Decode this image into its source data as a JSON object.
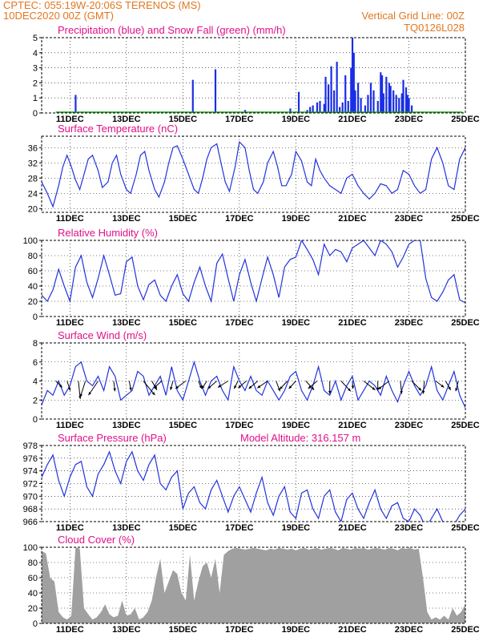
{
  "header": {
    "source_line": "CPTEC:  055:19W-20:06S  TERENOS (MS)",
    "init_line": "10DEC2020 00Z (GMT)",
    "grid_note": "Vertical Grid Line: 00Z",
    "code": "TQ0126L028"
  },
  "colors": {
    "precip": "#1a2ee6",
    "snow": "#10a010",
    "line": "#2233dd",
    "cloud": "#a0a0a0",
    "title": "#e0108a",
    "header": "#e07820",
    "arrow": "#000000"
  },
  "chart_data": [
    {
      "id": "precip",
      "type": "bar",
      "title": "Precipitation (blue) and Snow Fall (green) (mm/h)",
      "x_ticks": [
        "11DEC",
        "13DEC",
        "15DEC",
        "17DEC",
        "19DEC",
        "21DEC",
        "23DEC",
        "25DEC"
      ],
      "x_range_days": [
        10,
        25
      ],
      "ylim": [
        0,
        5
      ],
      "y_ticks": [
        0,
        1,
        2,
        3,
        4,
        5
      ],
      "series": [
        {
          "name": "Precipitation",
          "x": [
            11.2,
            15.35,
            16.15,
            17.2,
            18.8,
            19.1,
            19.4,
            19.5,
            19.6,
            19.75,
            19.85,
            20.0,
            20.05,
            20.15,
            20.25,
            20.35,
            20.45,
            20.55,
            20.65,
            20.75,
            20.85,
            20.95,
            21.0,
            21.05,
            21.1,
            21.2,
            21.3,
            21.45,
            21.55,
            21.65,
            21.75,
            21.9,
            22.0,
            22.05,
            22.1,
            22.2,
            22.3,
            22.35,
            22.45,
            22.55,
            22.65,
            22.75,
            22.8,
            22.9,
            22.95,
            23.0,
            23.1
          ],
          "values": [
            1.2,
            2.2,
            2.9,
            0.2,
            0.3,
            1.4,
            0.2,
            0.4,
            0.5,
            0.7,
            0.8,
            0.6,
            2.4,
            1.9,
            3.1,
            1.5,
            3.4,
            0.4,
            0.7,
            2.5,
            0.8,
            3.0,
            5.0,
            4.0,
            1.5,
            2.0,
            1.0,
            0.5,
            1.2,
            2.0,
            1.5,
            0.8,
            2.7,
            2.5,
            1.3,
            2.4,
            2.0,
            1.8,
            1.5,
            1.2,
            1.0,
            1.3,
            2.2,
            1.7,
            1.2,
            1.0,
            0.5
          ]
        },
        {
          "name": "Snow Fall",
          "x": [
            10.5,
            24.9
          ],
          "values": [
            0,
            0
          ]
        }
      ]
    },
    {
      "id": "temp",
      "type": "line",
      "title": "Surface Temperature (nC)",
      "ylim": [
        19,
        39
      ],
      "y_ticks": [
        20,
        24,
        28,
        32,
        36
      ],
      "x": [
        10,
        10.2,
        10.4,
        10.6,
        10.75,
        10.9,
        11.05,
        11.2,
        11.35,
        11.5,
        11.65,
        11.8,
        12.0,
        12.15,
        12.35,
        12.5,
        12.65,
        12.8,
        13.0,
        13.15,
        13.35,
        13.5,
        13.65,
        13.8,
        14.0,
        14.15,
        14.35,
        14.5,
        14.65,
        14.8,
        15.0,
        15.2,
        15.4,
        15.55,
        15.7,
        15.85,
        16.0,
        16.2,
        16.35,
        16.5,
        16.65,
        16.85,
        17.0,
        17.2,
        17.35,
        17.5,
        17.65,
        17.85,
        18.0,
        18.2,
        18.35,
        18.5,
        18.65,
        18.85,
        19.0,
        19.2,
        19.4,
        19.55,
        19.7,
        19.85,
        20.0,
        20.2,
        20.4,
        20.6,
        20.8,
        21.0,
        21.2,
        21.4,
        21.6,
        21.8,
        22.0,
        22.2,
        22.4,
        22.6,
        22.8,
        23.0,
        23.2,
        23.4,
        23.6,
        23.8,
        24.0,
        24.2,
        24.4,
        24.6,
        24.8,
        25.0
      ],
      "values": [
        27,
        24,
        20.5,
        26,
        31,
        34,
        31,
        27.5,
        25,
        29,
        33,
        34,
        30,
        25.5,
        27,
        32,
        34,
        29,
        25,
        24,
        29,
        34,
        35,
        30,
        25,
        23,
        27,
        32,
        36,
        36.5,
        33,
        29,
        25,
        24,
        28,
        33,
        36,
        37,
        32,
        27,
        24.5,
        31,
        37.5,
        36,
        30,
        25,
        24,
        27,
        32,
        35,
        31,
        26,
        26,
        29,
        35,
        32.5,
        27,
        26,
        33,
        30,
        28,
        26,
        25,
        24,
        28,
        29,
        26,
        24,
        22.5,
        24,
        26.5,
        26,
        24,
        25,
        30,
        29,
        26,
        24,
        25,
        33,
        36,
        32,
        26,
        25,
        33,
        36
      ]
    },
    {
      "id": "rh",
      "type": "line",
      "title": "Relative Humidity (%)",
      "ylim": [
        0,
        100
      ],
      "y_ticks": [
        0,
        20,
        40,
        60,
        80,
        100
      ],
      "x": [
        10,
        10.2,
        10.4,
        10.6,
        10.8,
        11.0,
        11.2,
        11.4,
        11.6,
        11.8,
        12.0,
        12.2,
        12.4,
        12.6,
        12.8,
        13.0,
        13.2,
        13.4,
        13.6,
        13.8,
        14.0,
        14.2,
        14.4,
        14.6,
        14.8,
        15.0,
        15.2,
        15.4,
        15.6,
        15.8,
        16.0,
        16.2,
        16.4,
        16.6,
        16.8,
        17.0,
        17.2,
        17.4,
        17.6,
        17.8,
        18.0,
        18.2,
        18.4,
        18.6,
        18.8,
        19.0,
        19.2,
        19.4,
        19.6,
        19.8,
        20.0,
        20.2,
        20.4,
        20.6,
        20.8,
        21.0,
        21.2,
        21.4,
        21.6,
        21.8,
        22.0,
        22.2,
        22.4,
        22.6,
        22.8,
        23.0,
        23.2,
        23.4,
        23.6,
        23.8,
        24.0,
        24.2,
        24.4,
        24.6,
        24.8,
        25.0
      ],
      "values": [
        28,
        20,
        35,
        62,
        40,
        20,
        65,
        80,
        45,
        25,
        50,
        80,
        55,
        28,
        30,
        72,
        78,
        40,
        22,
        42,
        48,
        28,
        20,
        40,
        55,
        30,
        20,
        45,
        65,
        40,
        20,
        70,
        82,
        50,
        20,
        55,
        75,
        45,
        20,
        50,
        78,
        55,
        25,
        65,
        75,
        78,
        100,
        88,
        75,
        55,
        95,
        80,
        88,
        85,
        72,
        90,
        95,
        100,
        90,
        80,
        100,
        95,
        85,
        65,
        78,
        95,
        100,
        100,
        50,
        25,
        20,
        32,
        48,
        55,
        22,
        18
      ]
    },
    {
      "id": "wind",
      "type": "line",
      "title": "Surface Wind (m/s)",
      "ylim": [
        0,
        8
      ],
      "y_ticks": [
        0,
        2,
        4,
        6,
        8
      ],
      "x": [
        10,
        10.2,
        10.4,
        10.6,
        10.8,
        11.0,
        11.2,
        11.4,
        11.6,
        11.8,
        12.0,
        12.2,
        12.4,
        12.6,
        12.8,
        13.0,
        13.2,
        13.4,
        13.6,
        13.8,
        14.0,
        14.2,
        14.4,
        14.6,
        14.8,
        15.0,
        15.2,
        15.4,
        15.6,
        15.8,
        16.0,
        16.2,
        16.4,
        16.6,
        16.8,
        17.0,
        17.2,
        17.4,
        17.6,
        17.8,
        18.0,
        18.2,
        18.4,
        18.6,
        18.8,
        19.0,
        19.2,
        19.4,
        19.6,
        19.8,
        20.0,
        20.2,
        20.4,
        20.6,
        20.8,
        21.0,
        21.2,
        21.4,
        21.6,
        21.8,
        22.0,
        22.2,
        22.4,
        22.6,
        22.8,
        23.0,
        23.2,
        23.4,
        23.6,
        23.8,
        24.0,
        24.2,
        24.4,
        24.6,
        24.8,
        25.0
      ],
      "values": [
        1.5,
        3,
        2.5,
        4,
        2.5,
        3.5,
        5.5,
        6,
        4,
        3.5,
        4.5,
        3,
        5.5,
        4.5,
        2,
        2.5,
        3,
        5,
        4.5,
        2.5,
        3.5,
        4.5,
        2.5,
        5.5,
        3,
        2,
        4,
        6,
        4,
        2.5,
        4,
        4.5,
        3,
        2,
        5.5,
        4,
        3,
        4.5,
        3,
        2.5,
        4,
        3,
        2,
        3,
        4.5,
        5,
        3,
        2,
        3.5,
        5.5,
        3,
        2.5,
        4,
        2,
        3.5,
        4.5,
        2,
        3,
        4,
        3.5,
        2.5,
        4.5,
        3,
        1.8,
        3.5,
        5,
        3.5,
        2.5,
        3.5,
        5.5,
        3,
        2,
        3.5,
        5,
        2.5,
        1.2
      ],
      "arrows": {
        "x": [
          10.5,
          10.9,
          11.3,
          11.55,
          12.0,
          12.55,
          13.1,
          13.6,
          13.9,
          14.25,
          14.65,
          15.1,
          15.55,
          15.85,
          16.2,
          16.6,
          16.95,
          17.25,
          17.65,
          18.0,
          18.3,
          18.7,
          19.0,
          19.35,
          19.75,
          20.2,
          20.6,
          21.0,
          21.4,
          21.9,
          22.3,
          22.7,
          23.1,
          23.55,
          23.95,
          24.3,
          24.75
        ],
        "u": [
          1,
          0.5,
          0.3,
          -0.8,
          -1.5,
          0.2,
          0.3,
          1.8,
          0.8,
          -1.2,
          -0.4,
          -1.6,
          0.5,
          -0.8,
          -1.4,
          -1.6,
          -0.6,
          -1.3,
          -1.4,
          -1.6,
          0.6,
          -1.2,
          -1.1,
          1.3,
          -1.4,
          0,
          1.5,
          0.1,
          1.8,
          0,
          -1.7,
          0.2,
          1.5,
          -0.2,
          1.3,
          0.8,
          -0.4
        ],
        "v": [
          1,
          1.5,
          2.8,
          2.5,
          2.2,
          1.6,
          1.5,
          2.2,
          1.4,
          1.1,
          1.4,
          1.2,
          1.2,
          1.2,
          1.2,
          1.0,
          1.2,
          1.1,
          1.2,
          1.1,
          1.6,
          1.3,
          1.2,
          1.4,
          1.2,
          2.0,
          1.6,
          1.2,
          1.4,
          1.5,
          1.3,
          2.0,
          1.5,
          2.0,
          1.0,
          1.4,
          1.6
        ]
      }
    },
    {
      "id": "pressure",
      "type": "line",
      "title": "Surface Pressure (hPa)",
      "note": "Model Altitude: 316.157 m",
      "ylim": [
        966,
        978
      ],
      "y_ticks": [
        966,
        968,
        970,
        972,
        974,
        976,
        978
      ],
      "x": [
        10,
        10.2,
        10.4,
        10.6,
        10.8,
        11.0,
        11.2,
        11.4,
        11.6,
        11.8,
        12.0,
        12.2,
        12.4,
        12.6,
        12.8,
        13.0,
        13.2,
        13.4,
        13.6,
        13.8,
        14.0,
        14.2,
        14.4,
        14.6,
        14.8,
        15.0,
        15.2,
        15.4,
        15.6,
        15.8,
        16.0,
        16.2,
        16.4,
        16.6,
        16.8,
        17.0,
        17.2,
        17.4,
        17.6,
        17.8,
        18.0,
        18.2,
        18.4,
        18.6,
        18.8,
        19.0,
        19.2,
        19.4,
        19.6,
        19.8,
        20.0,
        20.2,
        20.4,
        20.6,
        20.8,
        21.0,
        21.2,
        21.4,
        21.6,
        21.8,
        22.0,
        22.2,
        22.4,
        22.6,
        22.8,
        23.0,
        23.2,
        23.4,
        23.6,
        23.8,
        24.0,
        24.2,
        24.4,
        24.6,
        24.8,
        25.0
      ],
      "values": [
        973,
        975,
        976.5,
        972.5,
        970,
        973,
        975,
        975.5,
        971.5,
        970,
        973.5,
        975,
        977,
        974,
        972,
        975.5,
        977,
        974,
        972.5,
        975,
        976.5,
        972,
        971,
        973,
        974,
        968,
        970.5,
        971.5,
        969,
        968,
        971,
        972.5,
        970,
        967.5,
        970,
        971.5,
        969.5,
        967.5,
        970.5,
        973,
        969,
        967,
        970,
        971.5,
        967.5,
        966.5,
        970.5,
        971,
        968,
        966.5,
        970,
        971,
        967.5,
        966,
        969.5,
        970.5,
        968,
        966.5,
        969,
        971,
        968,
        966.5,
        968.5,
        969,
        966.5,
        966,
        968,
        967,
        965,
        966.5,
        968,
        966,
        964.5,
        965.5,
        967,
        968
      ]
    },
    {
      "id": "cloud",
      "type": "area",
      "title": "Cloud Cover (%)",
      "ylim": [
        0,
        100
      ],
      "y_ticks": [
        0,
        20,
        40,
        60,
        80,
        100
      ],
      "x": [
        10,
        10.15,
        10.3,
        10.45,
        10.6,
        10.75,
        10.9,
        11.05,
        11.2,
        11.35,
        11.5,
        11.65,
        11.8,
        11.95,
        12.1,
        12.25,
        12.4,
        12.55,
        12.7,
        12.85,
        13.0,
        13.15,
        13.3,
        13.45,
        13.6,
        13.75,
        13.9,
        14.05,
        14.2,
        14.35,
        14.5,
        14.65,
        14.8,
        14.95,
        15.1,
        15.25,
        15.4,
        15.55,
        15.7,
        15.85,
        16.0,
        16.15,
        16.3,
        16.45,
        16.6,
        16.75,
        16.9,
        17.05,
        17.2,
        17.35,
        17.5,
        17.65,
        17.8,
        17.95,
        18.1,
        18.25,
        18.4,
        18.55,
        18.7,
        18.85,
        19.0,
        19.15,
        19.3,
        19.45,
        19.6,
        19.75,
        19.9,
        20.05,
        20.2,
        20.35,
        20.5,
        20.65,
        20.8,
        20.95,
        21.1,
        21.25,
        21.4,
        21.55,
        21.7,
        21.85,
        22.0,
        22.15,
        22.3,
        22.45,
        22.6,
        22.75,
        22.9,
        23.05,
        23.2,
        23.35,
        23.5,
        23.65,
        23.8,
        23.95,
        24.1,
        24.25,
        24.4,
        24.55,
        24.7,
        24.85,
        25.0
      ],
      "values": [
        95,
        92,
        60,
        55,
        15,
        8,
        5,
        10,
        100,
        98,
        20,
        12,
        5,
        8,
        15,
        25,
        12,
        8,
        10,
        30,
        10,
        12,
        20,
        5,
        8,
        15,
        30,
        60,
        85,
        40,
        55,
        70,
        65,
        40,
        30,
        90,
        30,
        55,
        75,
        80,
        60,
        85,
        40,
        90,
        95,
        98,
        99,
        98,
        97,
        98,
        99,
        98,
        97,
        96,
        98,
        97,
        99,
        98,
        97,
        98,
        96,
        98,
        99,
        97,
        98,
        99,
        97,
        98,
        99,
        98,
        96,
        99,
        98,
        97,
        99,
        98,
        99,
        97,
        98,
        99,
        98,
        97,
        99,
        98,
        96,
        99,
        98,
        99,
        97,
        98,
        60,
        15,
        5,
        8,
        5,
        10,
        5,
        20,
        10,
        15,
        25
      ]
    }
  ]
}
